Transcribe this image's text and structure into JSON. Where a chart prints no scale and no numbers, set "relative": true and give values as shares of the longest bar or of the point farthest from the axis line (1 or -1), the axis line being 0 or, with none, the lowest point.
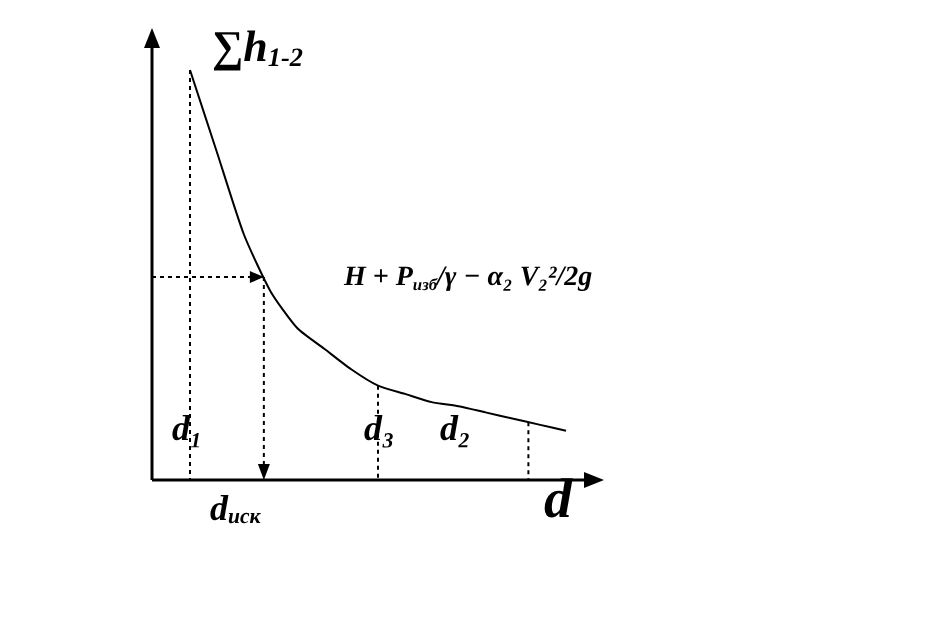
{
  "chart_data": {
    "type": "line",
    "relative": true,
    "color": "#000000",
    "xlabel": "d",
    "ylabel": "∑h$_{1-2}$",
    "categories": [
      null,
      null,
      null,
      null,
      null,
      null,
      null,
      null,
      null,
      null,
      null,
      null,
      null,
      null,
      null
    ],
    "values": [
      1,
      0.8,
      0.6,
      0.46,
      0.37,
      0.32,
      0.27,
      0.23,
      0.21,
      0.19,
      0.18,
      0.165,
      0.15,
      0.135,
      0.12
    ],
    "annotations": [
      "H + P$_{изб}$/γ − α₂ V₂²/2g",
      "d₁",
      "d₃",
      "d₂",
      "d$_{иск}$"
    ],
    "marker": "none",
    "line_style": "solid",
    "grid": false
  }
}
